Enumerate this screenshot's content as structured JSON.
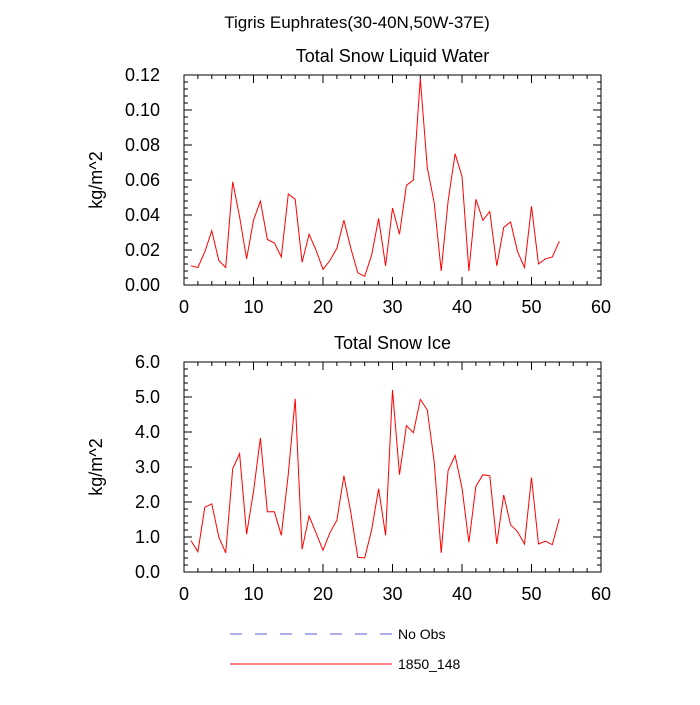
{
  "figure": {
    "title": "Tigris Euphrates(30-40N,50W-37E)"
  },
  "legend": {
    "entries": [
      {
        "label": "No Obs",
        "color": "#5b5bd6",
        "style": "dashed"
      },
      {
        "label": "1850_148",
        "color": "#ff0000",
        "style": "solid"
      }
    ]
  },
  "chart_data": [
    {
      "type": "line",
      "title": "Total Snow Liquid Water",
      "ylabel": "kg/m^2",
      "xlabel": "",
      "xlim": [
        0,
        60
      ],
      "ylim": [
        0,
        0.12
      ],
      "xticks": [
        0,
        10,
        20,
        30,
        40,
        50,
        60
      ],
      "xtick_labels": [
        "0",
        "10",
        "20",
        "30",
        "40",
        "50",
        "60"
      ],
      "yticks": [
        0,
        0.02,
        0.04,
        0.06,
        0.08,
        0.1,
        0.12
      ],
      "ytick_labels": [
        "0.00",
        "0.02",
        "0.04",
        "0.06",
        "0.08",
        "0.10",
        "0.12"
      ],
      "grid": false,
      "series": [
        {
          "name": "1850_148",
          "color": "#ff0000",
          "x": [
            1,
            2,
            3,
            4,
            5,
            6,
            7,
            8,
            9,
            10,
            11,
            12,
            13,
            14,
            15,
            16,
            17,
            18,
            19,
            20,
            21,
            22,
            23,
            24,
            25,
            26,
            27,
            28,
            29,
            30,
            31,
            32,
            33,
            34,
            35,
            36,
            37,
            38,
            39,
            40,
            41,
            42,
            43,
            44,
            45,
            46,
            47,
            48,
            49,
            50,
            51,
            52,
            53,
            54
          ],
          "y": [
            0.011,
            0.01,
            0.019,
            0.031,
            0.014,
            0.01,
            0.059,
            0.039,
            0.015,
            0.037,
            0.048,
            0.026,
            0.024,
            0.016,
            0.052,
            0.049,
            0.013,
            0.029,
            0.02,
            0.009,
            0.014,
            0.021,
            0.037,
            0.021,
            0.007,
            0.005,
            0.017,
            0.038,
            0.011,
            0.044,
            0.029,
            0.057,
            0.06,
            0.118,
            0.067,
            0.047,
            0.008,
            0.048,
            0.075,
            0.062,
            0.008,
            0.049,
            0.037,
            0.042,
            0.011,
            0.033,
            0.036,
            0.019,
            0.01,
            0.045,
            0.012,
            0.015,
            0.016,
            0.025
          ]
        }
      ]
    },
    {
      "type": "line",
      "title": "Total Snow Ice",
      "ylabel": "kg/m^2",
      "xlabel": "",
      "xlim": [
        0,
        60
      ],
      "ylim": [
        0,
        6
      ],
      "xticks": [
        0,
        10,
        20,
        30,
        40,
        50,
        60
      ],
      "xtick_labels": [
        "0",
        "10",
        "20",
        "30",
        "40",
        "50",
        "60"
      ],
      "yticks": [
        0,
        1,
        2,
        3,
        4,
        5,
        6
      ],
      "ytick_labels": [
        "0.0",
        "1.0",
        "2.0",
        "3.0",
        "4.0",
        "5.0",
        "6.0"
      ],
      "grid": false,
      "series": [
        {
          "name": "1850_148",
          "color": "#ff0000",
          "x": [
            1,
            2,
            3,
            4,
            5,
            6,
            7,
            8,
            9,
            10,
            11,
            12,
            13,
            14,
            15,
            16,
            17,
            18,
            19,
            20,
            21,
            22,
            23,
            24,
            25,
            26,
            27,
            28,
            29,
            30,
            31,
            32,
            33,
            34,
            35,
            36,
            37,
            38,
            39,
            40,
            41,
            42,
            43,
            44,
            45,
            46,
            47,
            48,
            49,
            50,
            51,
            52,
            53,
            54
          ],
          "y": [
            0.9,
            0.58,
            1.85,
            1.95,
            1.0,
            0.55,
            2.95,
            3.38,
            1.08,
            2.3,
            3.83,
            1.72,
            1.72,
            1.05,
            2.8,
            4.95,
            0.65,
            1.6,
            1.12,
            0.62,
            1.12,
            1.48,
            2.75,
            1.7,
            0.42,
            0.4,
            1.2,
            2.38,
            1.05,
            5.2,
            2.78,
            4.18,
            3.98,
            4.93,
            4.63,
            3.15,
            0.55,
            2.9,
            3.33,
            2.4,
            0.85,
            2.45,
            2.78,
            2.75,
            0.8,
            2.2,
            1.35,
            1.15,
            0.8,
            2.7,
            0.8,
            0.88,
            0.78,
            1.52
          ]
        }
      ]
    }
  ]
}
